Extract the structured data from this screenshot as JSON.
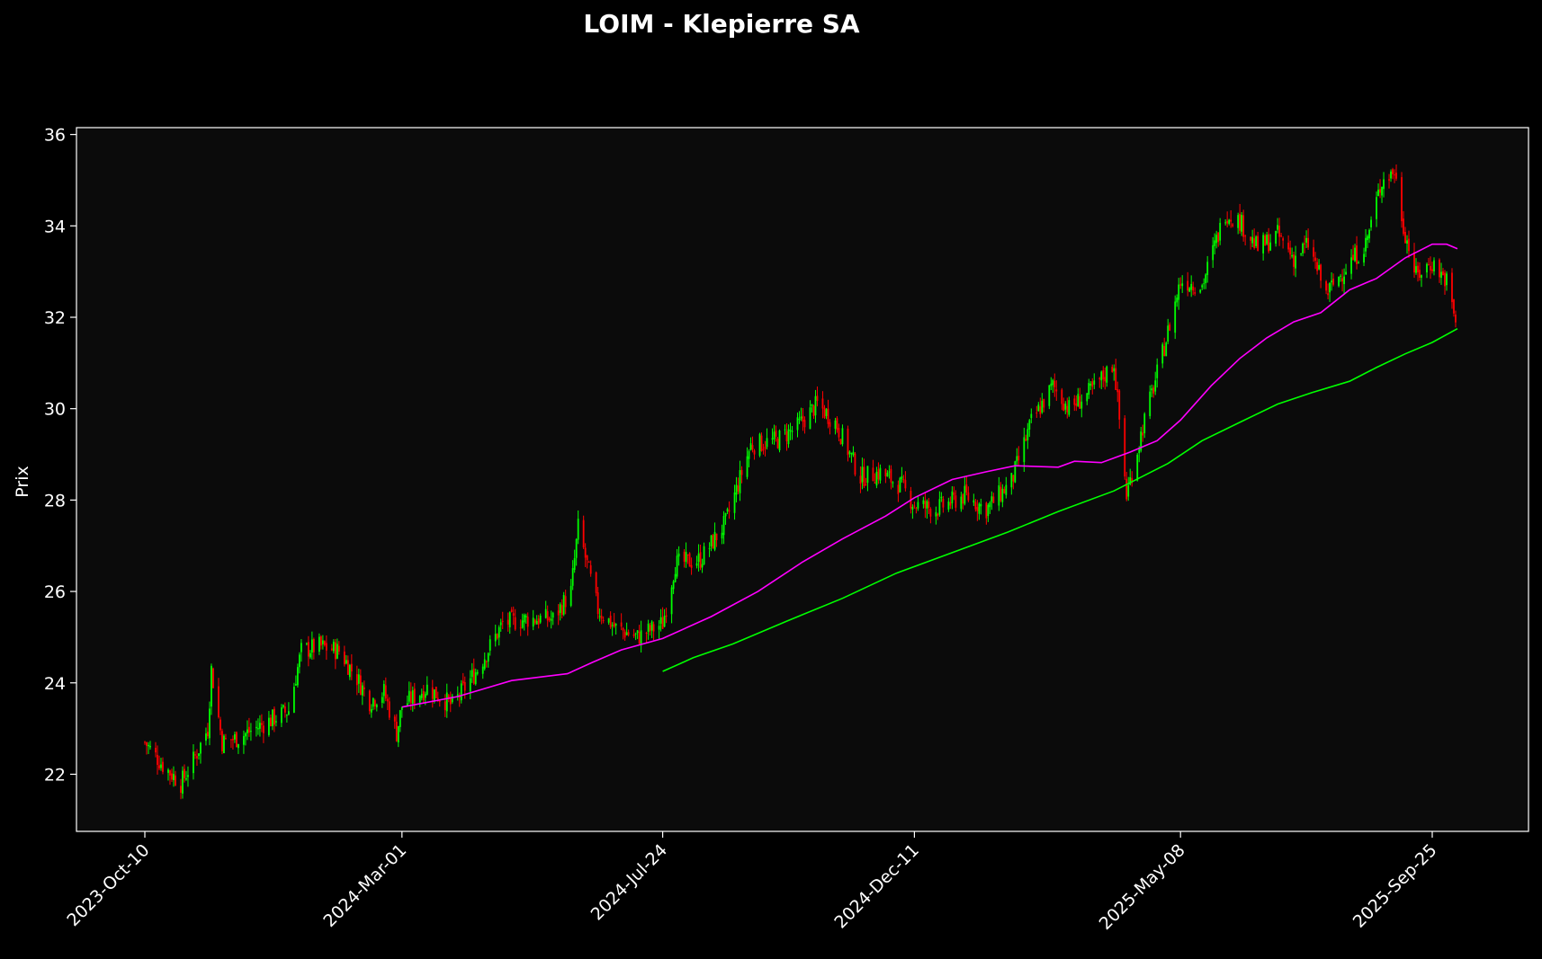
{
  "chart_data": {
    "type": "line",
    "title": "LOIM - Klepierre SA",
    "xlabel": "",
    "ylabel": "Prix",
    "ylim": [
      20.75,
      36.15
    ],
    "x_ticks": [
      "2023-Oct-10",
      "2024-Mar-01",
      "2024-Jul-24",
      "2024-Dec-11",
      "2025-May-08",
      "2025-Sep-25"
    ],
    "y_ticks": [
      22,
      24,
      26,
      28,
      30,
      32,
      34,
      36
    ],
    "grid": false,
    "legend": "none",
    "colors": {
      "background": "#000000",
      "plot_bg": "#0b0b0b",
      "frame": "#ffffff",
      "up": "#00ff00",
      "down": "#ff0000",
      "ma_short": "#ff00ff",
      "ma_long": "#00ff00"
    },
    "close_series": {
      "name": "",
      "points": [
        [
          "2023-Oct-10",
          22.7
        ],
        [
          "2023-Oct-20",
          22.2
        ],
        [
          "2023-Oct-30",
          21.8
        ],
        [
          "2023-Nov-06",
          22.3
        ],
        [
          "2023-Nov-14",
          23.0
        ],
        [
          "2023-Nov-16",
          24.3
        ],
        [
          "2023-Nov-22",
          22.7
        ],
        [
          "2023-Dec-01",
          22.8
        ],
        [
          "2023-Dec-15",
          23.1
        ],
        [
          "2023-Dec-29",
          23.4
        ],
        [
          "2024-Jan-05",
          24.7
        ],
        [
          "2024-Jan-15",
          24.8
        ],
        [
          "2024-Jan-26",
          24.7
        ],
        [
          "2024-Feb-05",
          24.1
        ],
        [
          "2024-Feb-12",
          23.6
        ],
        [
          "2024-Feb-20",
          23.8
        ],
        [
          "2024-Feb-27",
          22.9
        ],
        [
          "2024-Mar-01",
          23.5
        ],
        [
          "2024-Mar-15",
          23.9
        ],
        [
          "2024-Mar-29",
          23.5
        ],
        [
          "2024-Apr-12",
          24.3
        ],
        [
          "2024-Apr-26",
          25.3
        ],
        [
          "2024-May-10",
          25.4
        ],
        [
          "2024-May-24",
          25.4
        ],
        [
          "2024-Jun-03",
          26.0
        ],
        [
          "2024-Jun-07",
          27.4
        ],
        [
          "2024-Jun-18",
          25.6
        ],
        [
          "2024-Jun-28",
          25.2
        ],
        [
          "2024-Jul-10",
          25.0
        ],
        [
          "2024-Jul-24",
          25.3
        ],
        [
          "2024-Jul-31",
          26.6
        ],
        [
          "2024-Aug-14",
          26.7
        ],
        [
          "2024-Aug-28",
          27.5
        ],
        [
          "2024-Sep-11",
          29.2
        ],
        [
          "2024-Sep-25",
          29.3
        ],
        [
          "2024-Oct-07",
          29.6
        ],
        [
          "2024-Oct-18",
          30.1
        ],
        [
          "2024-Oct-28",
          29.7
        ],
        [
          "2024-Nov-11",
          28.5
        ],
        [
          "2024-Nov-22",
          28.6
        ],
        [
          "2024-Dec-04",
          28.3
        ],
        [
          "2024-Dec-11",
          27.9
        ],
        [
          "2024-Dec-23",
          27.8
        ],
        [
          "2025-Jan-08",
          28.1
        ],
        [
          "2025-Jan-20",
          27.8
        ],
        [
          "2025-Feb-03",
          28.4
        ],
        [
          "2025-Feb-14",
          29.7
        ],
        [
          "2025-Feb-26",
          30.5
        ],
        [
          "2025-Mar-07",
          30.0
        ],
        [
          "2025-Mar-20",
          30.4
        ],
        [
          "2025-Apr-01",
          31.0
        ],
        [
          "2025-Apr-08",
          28.1
        ],
        [
          "2025-Apr-17",
          29.6
        ],
        [
          "2025-Apr-28",
          31.2
        ],
        [
          "2025-May-08",
          32.8
        ],
        [
          "2025-May-20",
          32.7
        ],
        [
          "2025-Jun-02",
          34.3
        ],
        [
          "2025-Jun-10",
          34.1
        ],
        [
          "2025-Jun-20",
          33.5
        ],
        [
          "2025-Jul-01",
          33.8
        ],
        [
          "2025-Jul-10",
          33.3
        ],
        [
          "2025-Jul-18",
          33.6
        ],
        [
          "2025-Jul-28",
          32.5
        ],
        [
          "2025-Aug-08",
          33.1
        ],
        [
          "2025-Aug-19",
          33.6
        ],
        [
          "2025-Aug-28",
          35.0
        ],
        [
          "2025-Sep-04",
          35.2
        ],
        [
          "2025-Sep-09",
          34.0
        ],
        [
          "2025-Sep-16",
          32.9
        ],
        [
          "2025-Sep-25",
          33.2
        ],
        [
          "2025-Oct-03",
          32.8
        ],
        [
          "2025-Oct-09",
          31.7
        ]
      ]
    },
    "ma_short": {
      "name": "",
      "points": [
        [
          "2024-Mar-01",
          23.47
        ],
        [
          "2024-Apr-01",
          23.7
        ],
        [
          "2024-May-01",
          24.05
        ],
        [
          "2024-Jun-01",
          24.2
        ],
        [
          "2024-Jun-15",
          24.45
        ],
        [
          "2024-Jul-01",
          24.72
        ],
        [
          "2024-Jul-24",
          24.97
        ],
        [
          "2024-Aug-20",
          25.45
        ],
        [
          "2024-Sep-15",
          26.0
        ],
        [
          "2024-Oct-10",
          26.65
        ],
        [
          "2024-Nov-01",
          27.15
        ],
        [
          "2024-Nov-25",
          27.65
        ],
        [
          "2024-Dec-11",
          28.05
        ],
        [
          "2025-Jan-01",
          28.45
        ],
        [
          "2025-Jan-20",
          28.62
        ],
        [
          "2025-Feb-05",
          28.75
        ],
        [
          "2025-Mar-01",
          28.72
        ],
        [
          "2025-Mar-10",
          28.85
        ],
        [
          "2025-Mar-25",
          28.82
        ],
        [
          "2025-Apr-10",
          29.05
        ],
        [
          "2025-Apr-25",
          29.3
        ],
        [
          "2025-May-08",
          29.75
        ],
        [
          "2025-May-25",
          30.5
        ],
        [
          "2025-Jun-10",
          31.1
        ],
        [
          "2025-Jun-25",
          31.55
        ],
        [
          "2025-Jul-10",
          31.9
        ],
        [
          "2025-Jul-25",
          32.1
        ],
        [
          "2025-Aug-10",
          32.6
        ],
        [
          "2025-Aug-25",
          32.85
        ],
        [
          "2025-Sep-10",
          33.3
        ],
        [
          "2025-Sep-25",
          33.6
        ],
        [
          "2025-Oct-03",
          33.6
        ],
        [
          "2025-Oct-09",
          33.5
        ]
      ]
    },
    "ma_long": {
      "name": "",
      "points": [
        [
          "2024-Jul-24",
          24.25
        ],
        [
          "2024-Aug-10",
          24.55
        ],
        [
          "2024-Sep-01",
          24.85
        ],
        [
          "2024-Oct-01",
          25.35
        ],
        [
          "2024-Nov-01",
          25.85
        ],
        [
          "2024-Dec-01",
          26.4
        ],
        [
          "2025-Jan-01",
          26.85
        ],
        [
          "2025-Feb-01",
          27.3
        ],
        [
          "2025-Mar-01",
          27.75
        ],
        [
          "2025-Apr-01",
          28.2
        ],
        [
          "2025-May-01",
          28.8
        ],
        [
          "2025-May-20",
          29.3
        ],
        [
          "2025-Jun-10",
          29.7
        ],
        [
          "2025-Jul-01",
          30.1
        ],
        [
          "2025-Jul-20",
          30.35
        ],
        [
          "2025-Aug-10",
          30.6
        ],
        [
          "2025-Aug-25",
          30.9
        ],
        [
          "2025-Sep-10",
          31.2
        ],
        [
          "2025-Sep-25",
          31.45
        ],
        [
          "2025-Oct-09",
          31.75
        ]
      ]
    }
  }
}
